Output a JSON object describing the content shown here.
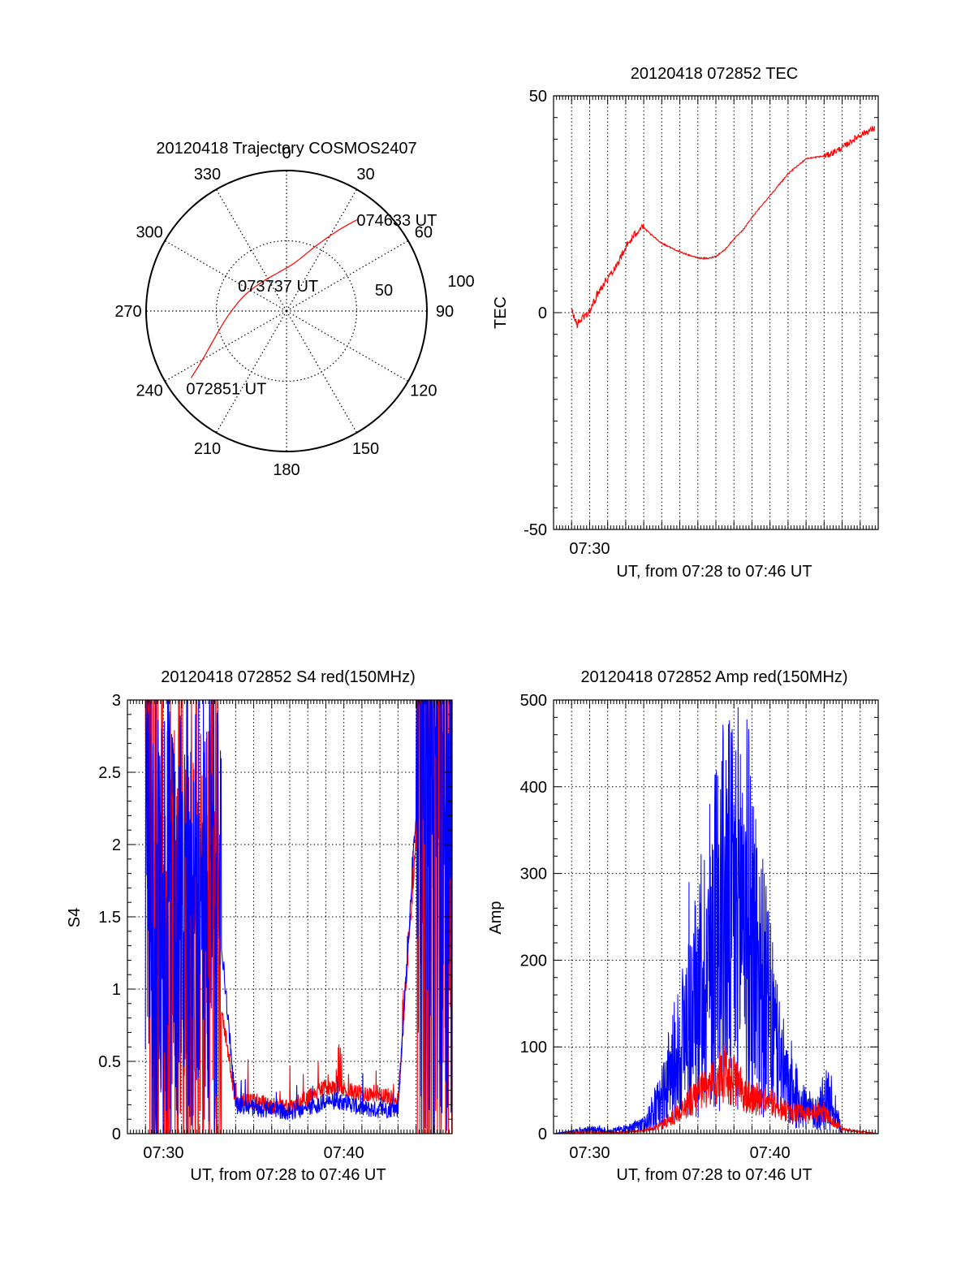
{
  "chart_data": [
    {
      "type": "polar",
      "title": "20120418 Trajectory COSMOS2407",
      "angle_ticks": [
        "0",
        "30",
        "60",
        "90",
        "120",
        "150",
        "180",
        "210",
        "240",
        "270",
        "300",
        "330"
      ],
      "radial_ticks": [
        "50",
        "100"
      ],
      "radial_range": [
        0,
        100
      ],
      "grid": true,
      "series": [
        {
          "color": "#ff0000",
          "points": [
            {
              "azimuth": 235,
              "zenith": 83
            },
            {
              "azimuth": 240,
              "zenith": 69
            },
            {
              "azimuth": 250,
              "zenith": 54
            },
            {
              "azimuth": 265,
              "zenith": 42
            },
            {
              "azimuth": 290,
              "zenith": 32
            },
            {
              "azimuth": 320,
              "zenith": 27
            },
            {
              "azimuth": 348,
              "zenith": 28
            },
            {
              "azimuth": 10,
              "zenith": 35
            },
            {
              "azimuth": 25,
              "zenith": 52
            },
            {
              "azimuth": 33,
              "zenith": 69
            },
            {
              "azimuth": 38,
              "zenith": 83
            }
          ]
        }
      ],
      "annotations": [
        {
          "text": "074633 UT",
          "azimuth": 38,
          "zenith": 83
        },
        {
          "text": "073737 UT",
          "azimuth": 330,
          "zenith": 16
        },
        {
          "text": "072851 UT",
          "azimuth": 235,
          "zenith": 83
        }
      ]
    },
    {
      "type": "line",
      "title": "20120418 072852 TEC",
      "xlabel": "UT, from 07:28 to 07:46 UT",
      "ylabel": "TEC",
      "xlim": [
        "07:28",
        "07:46"
      ],
      "ylim": [
        -50,
        50
      ],
      "y_ticks": [
        "-50",
        "0",
        "50"
      ],
      "x_ticks": [
        "07:30"
      ],
      "grid": true,
      "series": [
        {
          "color": "#ff0000",
          "x": [
            "07:29.0",
            "07:29.3",
            "07:29.6",
            "07:30.0",
            "07:30.5",
            "07:31.0",
            "07:31.5",
            "07:32.0",
            "07:32.5",
            "07:32.9",
            "07:33.4",
            "07:34.0",
            "07:35.0",
            "07:36.0",
            "07:36.6",
            "07:37.0",
            "07:37.5",
            "07:38.0",
            "07:38.5",
            "07:39.0",
            "07:40.0",
            "07:41.0",
            "07:42.0",
            "07:42.8",
            "07:43.2",
            "07:44.0",
            "07:45.0",
            "07:45.8"
          ],
          "values": [
            0.5,
            -2.8,
            -1.2,
            0.2,
            5,
            8,
            11,
            15,
            18,
            20,
            18,
            16,
            14,
            12.6,
            12.5,
            13,
            14.5,
            17,
            19,
            22,
            27,
            32,
            35.5,
            36,
            36.3,
            38,
            41,
            42.5
          ]
        }
      ]
    },
    {
      "type": "line",
      "title": "20120418 072852 S4 red(150MHz)",
      "xlabel": "UT, from 07:28 to 07:46 UT",
      "ylabel": "S4",
      "xlim": [
        "07:28",
        "07:46"
      ],
      "ylim": [
        0,
        3
      ],
      "y_ticks": [
        "0",
        "0.5",
        "1",
        "1.5",
        "2",
        "2.5",
        "3"
      ],
      "x_ticks": [
        "07:30",
        "07:40"
      ],
      "grid": true,
      "series": [
        {
          "color": "#ff0000",
          "x": [
            "07:29",
            "07:30",
            "07:31",
            "07:32",
            "07:33",
            "07:34",
            "07:35",
            "07:36",
            "07:37",
            "07:38",
            "07:39",
            "07:40",
            "07:41",
            "07:42",
            "07:43",
            "07:44",
            "07:45",
            "07:46"
          ],
          "values": [
            2.5,
            1.3,
            1.1,
            1.2,
            1.0,
            0.2,
            0.2,
            0.17,
            0.15,
            0.22,
            0.3,
            0.28,
            0.25,
            0.26,
            0.2,
            2.0,
            2.2,
            1.8
          ]
        },
        {
          "color": "#0000ff",
          "x": [
            "07:29",
            "07:30",
            "07:31",
            "07:32",
            "07:33",
            "07:34",
            "07:35",
            "07:36",
            "07:37",
            "07:38",
            "07:39",
            "07:40",
            "07:41",
            "07:42",
            "07:43",
            "07:44",
            "07:45",
            "07:46"
          ],
          "values": [
            1.8,
            1.6,
            1.5,
            1.5,
            1.6,
            0.17,
            0.15,
            0.14,
            0.13,
            0.15,
            0.2,
            0.2,
            0.15,
            0.14,
            0.15,
            2.2,
            2.4,
            2.0
          ]
        }
      ]
    },
    {
      "type": "line",
      "title": "20120418 072852 Amp red(150MHz)",
      "xlabel": "UT, from 07:28 to 07:46 UT",
      "ylabel": "Amp",
      "xlim": [
        "07:28",
        "07:46"
      ],
      "ylim": [
        0,
        500
      ],
      "y_ticks": [
        "0",
        "100",
        "200",
        "300",
        "400",
        "500"
      ],
      "x_ticks": [
        "07:30",
        "07:40"
      ],
      "grid": true,
      "series": [
        {
          "color": "#0000ff",
          "x": [
            "07:28",
            "07:29",
            "07:30",
            "07:31",
            "07:32",
            "07:33",
            "07:34",
            "07:35",
            "07:36",
            "07:37",
            "07:37.5",
            "07:38",
            "07:38.5",
            "07:39",
            "07:40",
            "07:41",
            "07:42",
            "07:42.5",
            "07:43",
            "07:43.5",
            "07:44",
            "07:46"
          ],
          "values": [
            0,
            2,
            5,
            3,
            5,
            10,
            40,
            100,
            150,
            240,
            260,
            250,
            280,
            230,
            130,
            50,
            30,
            20,
            40,
            35,
            0,
            0
          ]
        },
        {
          "color": "#ff0000",
          "x": [
            "07:28",
            "07:29",
            "07:30",
            "07:31",
            "07:32",
            "07:33",
            "07:34",
            "07:35",
            "07:36",
            "07:37",
            "07:37.5",
            "07:38",
            "07:38.5",
            "07:39",
            "07:40",
            "07:41",
            "07:42",
            "07:43",
            "07:44",
            "07:46"
          ],
          "values": [
            0,
            1,
            2,
            1,
            2,
            3,
            10,
            25,
            45,
            60,
            70,
            60,
            50,
            42,
            35,
            25,
            22,
            25,
            5,
            0
          ]
        }
      ]
    }
  ]
}
